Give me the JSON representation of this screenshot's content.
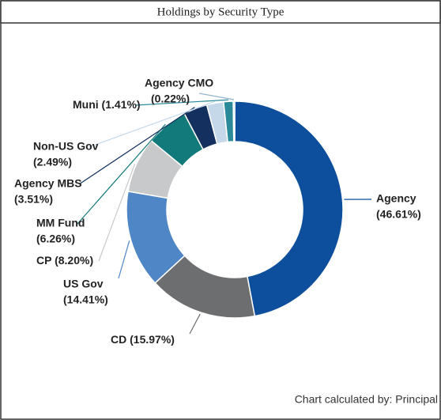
{
  "chart_data": {
    "type": "donut",
    "title": "Holdings by Security Type",
    "categories": [
      "Agency",
      "CD",
      "US Gov",
      "CP",
      "MM Fund",
      "Agency MBS",
      "Non-US Gov",
      "Muni",
      "Agency CMO"
    ],
    "values": [
      46.61,
      15.97,
      14.41,
      8.2,
      6.26,
      3.51,
      2.49,
      1.41,
      0.22
    ],
    "value_labels": [
      "(46.61%)",
      "(15.97%)",
      "(14.41%)",
      "(8.20%)",
      "(6.26%)",
      "(3.51%)",
      "(2.49%)",
      "(1.41%)",
      "(0.22%)"
    ],
    "colors": [
      "#0d4f9c",
      "#6d6e70",
      "#4f86c6",
      "#c8c9cb",
      "#127a7a",
      "#14305e",
      "#c5d8ea",
      "#2a8a9a",
      "#8fb3cf"
    ],
    "footer": "Chart calculated by: Principal"
  }
}
